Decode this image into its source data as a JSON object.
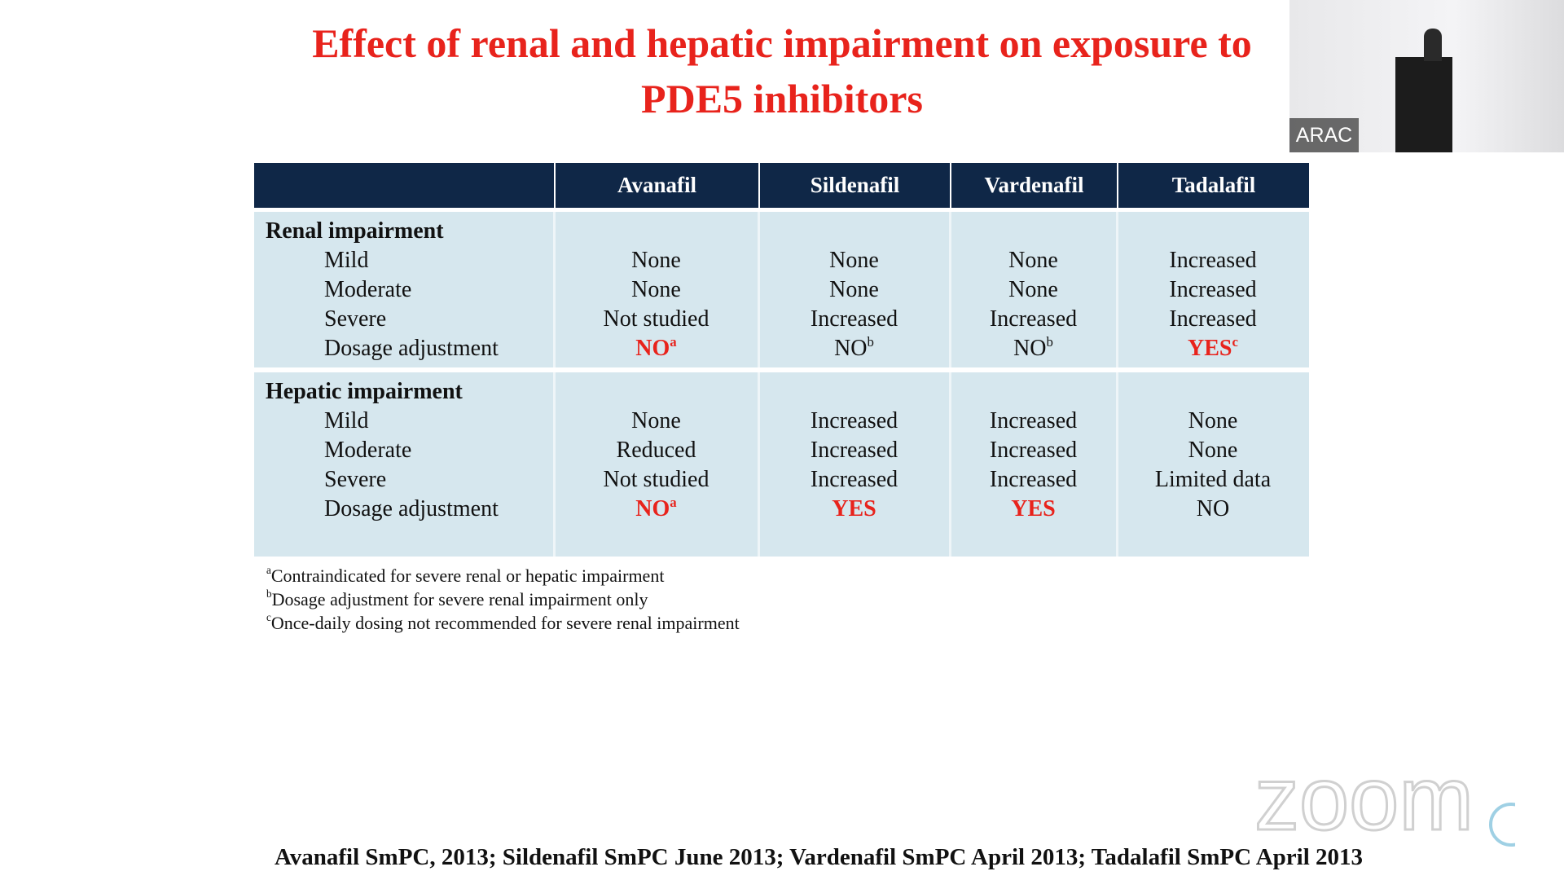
{
  "slide": {
    "title": [
      "Effect of renal and hepatic impairment on exposure to",
      "PDE5 inhibitors"
    ],
    "table": {
      "header": [
        "Avanafil",
        "Sildenafil",
        "Vardenafil",
        "Tadalafil"
      ],
      "sections": [
        {
          "title": "Renal impairment",
          "rows": [
            {
              "label": "Mild",
              "cells": [
                "None",
                "None",
                "None",
                "Increased"
              ]
            },
            {
              "label": "Moderate",
              "cells": [
                "None",
                "None",
                "None",
                "Increased"
              ]
            },
            {
              "label": "Severe",
              "cells": [
                "Not studied",
                "Increased",
                "Increased",
                "Increased"
              ]
            },
            {
              "label": "Dosage adjustment",
              "cells": [
                {
                  "text": "NO",
                  "sup": "a",
                  "highlight": true
                },
                {
                  "text": "NO",
                  "sup": "b",
                  "highlight": false
                },
                {
                  "text": "NO",
                  "sup": "b",
                  "highlight": false
                },
                {
                  "text": "YES",
                  "sup": "c",
                  "highlight": true
                }
              ]
            }
          ]
        },
        {
          "title": "Hepatic impairment",
          "rows": [
            {
              "label": "Mild",
              "cells": [
                "None",
                "Increased",
                "Increased",
                "None"
              ]
            },
            {
              "label": "Moderate",
              "cells": [
                "Reduced",
                "Increased",
                "Increased",
                "None"
              ]
            },
            {
              "label": "Severe",
              "cells": [
                "Not studied",
                "Increased",
                "Increased",
                "Limited data"
              ]
            },
            {
              "label": "Dosage adjustment",
              "cells": [
                {
                  "text": "NO",
                  "sup": "a",
                  "highlight": true
                },
                {
                  "text": "YES",
                  "highlight": true
                },
                {
                  "text": "YES",
                  "highlight": true
                },
                "NO"
              ]
            }
          ]
        }
      ]
    },
    "footnotes": [
      {
        "sup": "a",
        "text": "Contraindicated for severe renal or hepatic impairment"
      },
      {
        "sup": "b",
        "text": "Dosage adjustment for severe renal impairment only"
      },
      {
        "sup": "c",
        "text": "Once-daily dosing not recommended for severe renal impairment"
      }
    ],
    "citation": "Avanafil SmPC, 2013; Sildenafil SmPC June 2013; Vardenafil SmPC April 2013; Tadalafil SmPC April 2013"
  },
  "video": {
    "label": "ARAC"
  },
  "watermark": "zoom"
}
